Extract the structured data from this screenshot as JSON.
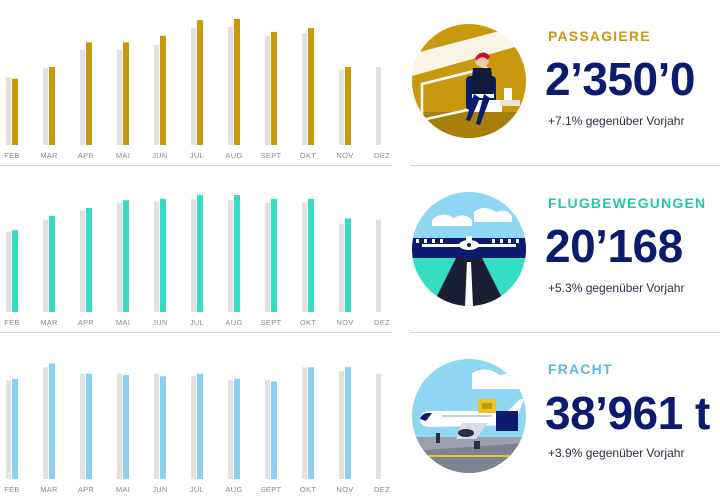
{
  "panels": [
    {
      "key": "passengers",
      "title": "PASSAGIERE",
      "value": "2’350’0",
      "change": "+7.1% gegenüber Vorjahr",
      "accent": "#c8990f",
      "compare": "#e1e1e1",
      "icon": "passenger-lounge-illustration"
    },
    {
      "key": "movements",
      "title": "FLUGBEWEGUNGEN",
      "value": "20’168",
      "change": "+5.3% gegenüber Vorjahr",
      "accent": "#36dcc3",
      "compare": "#e1e1e1",
      "icon": "runway-airplane-illustration"
    },
    {
      "key": "freight",
      "title": "FRACHT",
      "value": "38’961 t",
      "change": "+3.9% gegenüber Vorjahr",
      "accent": "#8ccff0",
      "compare": "#e1e1e1",
      "icon": "cargo-plane-illustration"
    }
  ],
  "chart_data": [
    {
      "type": "bar",
      "categories": [
        "FEB",
        "MAR",
        "APR",
        "MAI",
        "JUN",
        "JUL",
        "AUG",
        "SEPT",
        "OKT",
        "NOV",
        "DEZ"
      ],
      "series": [
        {
          "values": [
            52,
            59,
            73,
            73,
            77,
            90,
            91,
            84,
            86,
            58,
            60
          ]
        },
        {
          "values": [
            51,
            60,
            79,
            79,
            84,
            96,
            97,
            87,
            90,
            60,
            null
          ]
        }
      ],
      "ylim": [
        0,
        100
      ]
    },
    {
      "type": "bar",
      "categories": [
        "FEB",
        "MAR",
        "APR",
        "MAI",
        "JUN",
        "JUL",
        "AUG",
        "SEPT",
        "OKT",
        "NOV",
        "DEZ"
      ],
      "series": [
        {
          "values": [
            62,
            71,
            78,
            84,
            85,
            87,
            86,
            84,
            84,
            68,
            71
          ]
        },
        {
          "values": [
            63,
            74,
            80,
            86,
            87,
            90,
            90,
            87,
            87,
            72,
            null
          ]
        }
      ],
      "ylim": [
        0,
        100
      ]
    },
    {
      "type": "bar",
      "categories": [
        "FEB",
        "MAR",
        "APR",
        "MAI",
        "JUN",
        "JUL",
        "AUG",
        "SEPT",
        "OKT",
        "NOV",
        "DEZ"
      ],
      "series": [
        {
          "values": [
            76,
            86,
            81,
            81,
            81,
            79,
            76,
            76,
            86,
            83,
            81
          ]
        },
        {
          "values": [
            77,
            89,
            81,
            80,
            79,
            81,
            77,
            75,
            86,
            86,
            null
          ]
        }
      ],
      "ylim": [
        0,
        100
      ]
    }
  ]
}
